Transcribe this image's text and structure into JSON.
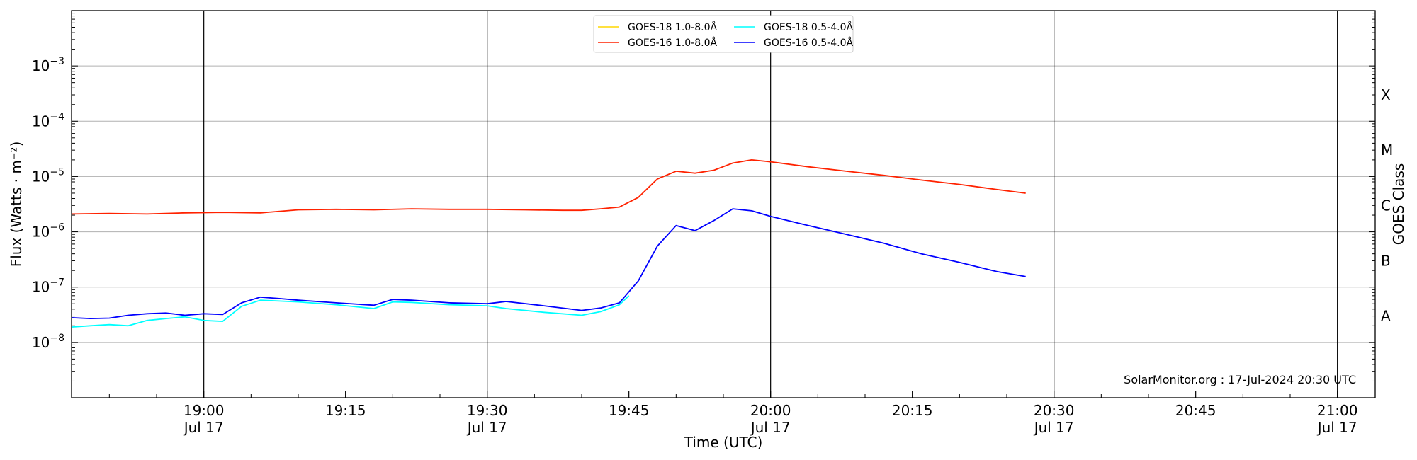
{
  "chart_data": {
    "type": "line",
    "xlabel": "Time (UTC)",
    "ylabel": "Flux (Watts · m⁻²)",
    "ylabel_right": "GOES Class",
    "scale_y": "log",
    "ylim": [
      1e-09,
      0.01
    ],
    "xlim": [
      "2024-07-17 18:46",
      "2024-07-17 21:04"
    ],
    "grid": "horizontal at decades; vertical lines every 30 min",
    "legend_position": "top-center",
    "x_ticks": [
      {
        "t": "19:00",
        "line1": "19:00",
        "line2": "Jul 17"
      },
      {
        "t": "19:15",
        "line1": "19:15",
        "line2": ""
      },
      {
        "t": "19:30",
        "line1": "19:30",
        "line2": "Jul 17"
      },
      {
        "t": "19:45",
        "line1": "19:45",
        "line2": ""
      },
      {
        "t": "20:00",
        "line1": "20:00",
        "line2": "Jul 17"
      },
      {
        "t": "20:15",
        "line1": "20:15",
        "line2": ""
      },
      {
        "t": "20:30",
        "line1": "20:30",
        "line2": "Jul 17"
      },
      {
        "t": "20:45",
        "line1": "20:45",
        "line2": ""
      },
      {
        "t": "21:00",
        "line1": "21:00",
        "line2": "Jul 17"
      }
    ],
    "y_ticks": [
      {
        "value": 1e-08,
        "exp": "-8"
      },
      {
        "value": 1e-07,
        "exp": "-7"
      },
      {
        "value": 1e-06,
        "exp": "-6"
      },
      {
        "value": 1e-05,
        "exp": "-5"
      },
      {
        "value": 0.0001,
        "exp": "-4"
      },
      {
        "value": 0.001,
        "exp": "-3"
      }
    ],
    "goes_classes": [
      {
        "label": "A",
        "value": 3e-08
      },
      {
        "label": "B",
        "value": 3e-07
      },
      {
        "label": "C",
        "value": 3e-06
      },
      {
        "label": "M",
        "value": 3e-05
      },
      {
        "label": "X",
        "value": 0.0003
      }
    ],
    "series": [
      {
        "name": "GOES-18 1.0-8.0Å",
        "color": "#FFD700",
        "x": [],
        "values": []
      },
      {
        "name": "GOES-16 1.0-8.0Å",
        "color": "#FF2200",
        "x": [
          "18:46",
          "18:50",
          "18:54",
          "18:58",
          "19:02",
          "19:06",
          "19:10",
          "19:14",
          "19:18",
          "19:22",
          "19:26",
          "19:30",
          "19:34",
          "19:38",
          "19:40",
          "19:42",
          "19:44",
          "19:46",
          "19:48",
          "19:50",
          "19:52",
          "19:54",
          "19:56",
          "19:58",
          "20:00",
          "20:04",
          "20:08",
          "20:12",
          "20:16",
          "20:20",
          "20:24",
          "20:27"
        ],
        "values": [
          2.1e-06,
          2.15e-06,
          2.1e-06,
          2.2e-06,
          2.25e-06,
          2.2e-06,
          2.5e-06,
          2.55e-06,
          2.5e-06,
          2.6e-06,
          2.55e-06,
          2.55e-06,
          2.5e-06,
          2.45e-06,
          2.45e-06,
          2.6e-06,
          2.8e-06,
          4.2e-06,
          9e-06,
          1.25e-05,
          1.15e-05,
          1.3e-05,
          1.75e-05,
          2e-05,
          1.85e-05,
          1.5e-05,
          1.25e-05,
          1.05e-05,
          8.6e-06,
          7.2e-06,
          5.8e-06,
          5e-06
        ]
      },
      {
        "name": "GOES-18 0.5-4.0Å",
        "color": "#00FFFF",
        "x": [
          "18:46",
          "18:48",
          "18:50",
          "18:52",
          "18:54",
          "18:56",
          "18:58",
          "19:00",
          "19:02",
          "19:04",
          "19:06",
          "19:08",
          "19:10",
          "19:14",
          "19:18",
          "19:20",
          "19:22",
          "19:26",
          "19:30",
          "19:32",
          "19:36",
          "19:40",
          "19:42",
          "19:44",
          "19:45"
        ],
        "values": [
          1.9e-08,
          2e-08,
          2.1e-08,
          2e-08,
          2.5e-08,
          2.7e-08,
          2.9e-08,
          2.5e-08,
          2.4e-08,
          4.5e-08,
          5.8e-08,
          5.6e-08,
          5.4e-08,
          4.8e-08,
          4.1e-08,
          5.4e-08,
          5.3e-08,
          4.8e-08,
          4.6e-08,
          4.1e-08,
          3.5e-08,
          3.1e-08,
          3.6e-08,
          4.8e-08,
          7e-08
        ]
      },
      {
        "name": "GOES-16 0.5-4.0Å",
        "color": "#0000FF",
        "x": [
          "18:46",
          "18:48",
          "18:50",
          "18:52",
          "18:54",
          "18:56",
          "18:58",
          "19:00",
          "19:02",
          "19:04",
          "19:06",
          "19:08",
          "19:10",
          "19:14",
          "19:18",
          "19:20",
          "19:22",
          "19:26",
          "19:30",
          "19:32",
          "19:36",
          "19:40",
          "19:42",
          "19:44",
          "19:46",
          "19:48",
          "19:50",
          "19:52",
          "19:54",
          "19:56",
          "19:58",
          "20:00",
          "20:04",
          "20:08",
          "20:12",
          "20:16",
          "20:20",
          "20:24",
          "20:27"
        ],
        "values": [
          2.8e-08,
          2.7e-08,
          2.75e-08,
          3.1e-08,
          3.3e-08,
          3.4e-08,
          3.1e-08,
          3.3e-08,
          3.2e-08,
          5.2e-08,
          6.6e-08,
          6.2e-08,
          5.8e-08,
          5.2e-08,
          4.7e-08,
          6e-08,
          5.8e-08,
          5.2e-08,
          5e-08,
          5.5e-08,
          4.6e-08,
          3.8e-08,
          4.2e-08,
          5.2e-08,
          1.3e-07,
          5.5e-07,
          1.3e-06,
          1.05e-06,
          1.6e-06,
          2.6e-06,
          2.4e-06,
          1.9e-06,
          1.3e-06,
          9e-07,
          6.2e-07,
          4e-07,
          2.8e-07,
          1.9e-07,
          1.55e-07
        ]
      }
    ],
    "annotation": "SolarMonitor.org : 17-Jul-2024 20:30 UTC"
  }
}
